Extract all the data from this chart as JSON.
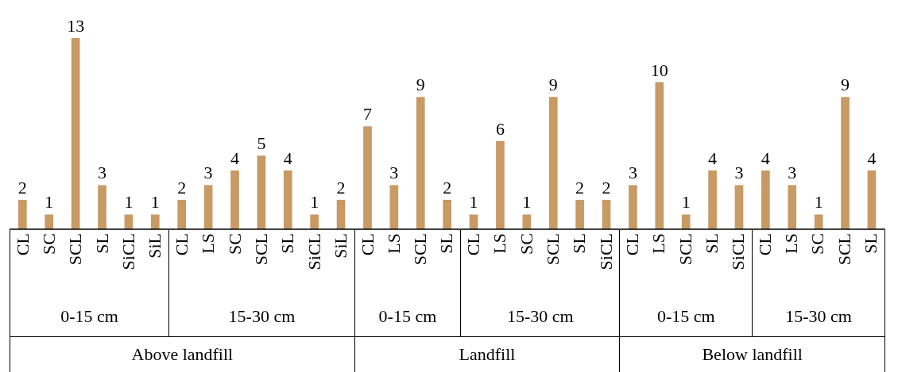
{
  "chart_data": {
    "type": "bar",
    "categories": [
      "CL",
      "SC",
      "SCL",
      "SL",
      "SiCL",
      "SiL",
      "CL",
      "LS",
      "SC",
      "SCL",
      "SL",
      "SiCL",
      "SiL",
      "CL",
      "LS",
      "SCL",
      "SL",
      "CL",
      "LS",
      "SC",
      "SCL",
      "SL",
      "SiCL",
      "CL",
      "LS",
      "SCL",
      "SL",
      "SiCL",
      "CL",
      "LS",
      "SC",
      "SCL",
      "SL"
    ],
    "values": [
      2,
      1,
      13,
      3,
      1,
      1,
      2,
      3,
      4,
      5,
      4,
      1,
      2,
      7,
      3,
      9,
      2,
      1,
      6,
      1,
      9,
      2,
      2,
      3,
      10,
      1,
      4,
      3,
      4,
      3,
      1,
      9,
      4
    ],
    "color": "#c89a64",
    "data_labels": true,
    "annotations": [
      "0-15 cm",
      "15-30 cm",
      "0-15 cm",
      "15-30 cm",
      "0-15 cm",
      "15-30 cm",
      "Above landfill",
      "Landfill",
      "Below landfill"
    ]
  }
}
